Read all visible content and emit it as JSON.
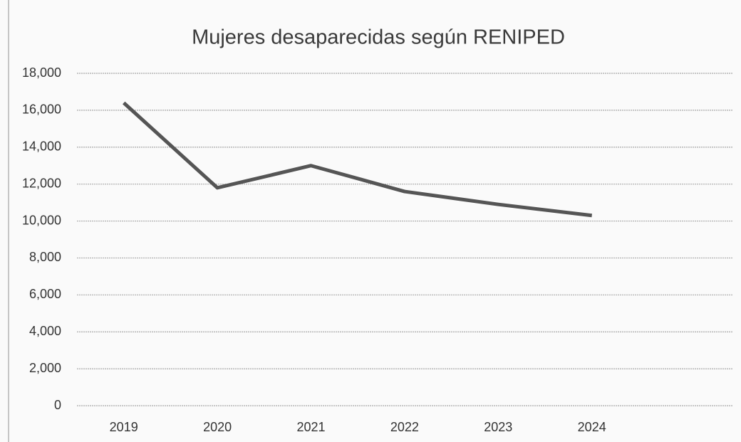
{
  "chart_data": {
    "type": "line",
    "title": "Mujeres desaparecidas según RENIPED",
    "categories": [
      "2019",
      "2020",
      "2021",
      "2022",
      "2023",
      "2024"
    ],
    "values": [
      16400,
      11800,
      13000,
      11600,
      10900,
      10300
    ],
    "color": "#555555",
    "ylim": [
      0,
      18000
    ],
    "yticks": [
      0,
      {
        "value": 2000,
        "label": "2,000"
      },
      {
        "value": 4000,
        "label": "4,000"
      },
      {
        "value": 6000,
        "label": "6,000"
      },
      {
        "value": 8000,
        "label": "8,000"
      },
      {
        "value": 10000,
        "label": "10,000"
      },
      {
        "value": 12000,
        "label": "12,000"
      },
      {
        "value": 14000,
        "label": "14,000"
      },
      {
        "value": 16000,
        "label": "16,000"
      },
      {
        "value": 18000,
        "label": "18,000"
      }
    ],
    "grid": true
  }
}
